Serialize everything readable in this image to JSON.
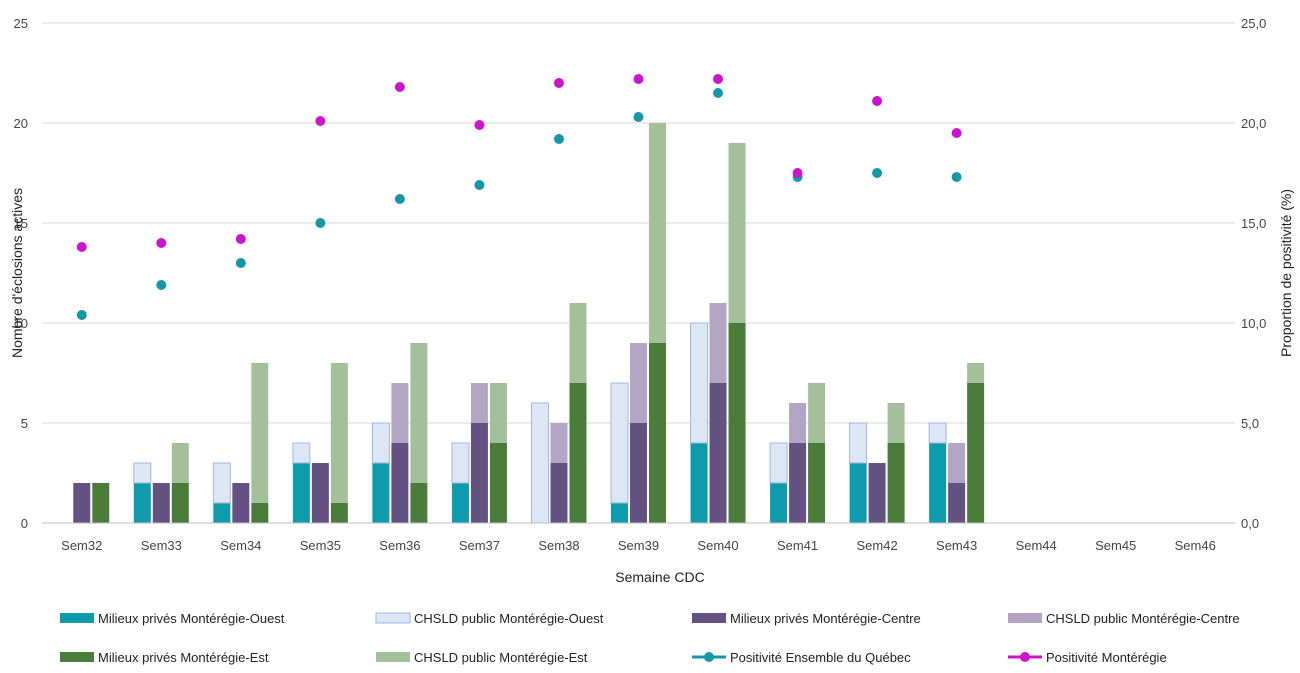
{
  "chart_data": {
    "type": "bar",
    "title": "",
    "xlabel": "Semaine CDC",
    "ylabel": "Nombre d'éclosions actives",
    "y2label": "Proportion de positivité (%)",
    "ylim": [
      0,
      25
    ],
    "y2lim": [
      0,
      25
    ],
    "yticks": [
      "0",
      "5",
      "10",
      "15",
      "20",
      "25"
    ],
    "y2ticks": [
      "0,0",
      "5,0",
      "10,0",
      "15,0",
      "20,0",
      "25,0"
    ],
    "grid": true,
    "legend_position": "bottom",
    "categories": [
      "Sem32",
      "Sem33",
      "Sem34",
      "Sem35",
      "Sem36",
      "Sem37",
      "Sem38",
      "Sem39",
      "Sem40",
      "Sem41",
      "Sem42",
      "Sem43",
      "Sem44",
      "Sem45",
      "Sem46"
    ],
    "bar_groups": [
      {
        "region": "Ouest",
        "series": [
          {
            "name": "Milieux privés Montérégie-Ouest",
            "color": "#0e9bab",
            "values": [
              0,
              2,
              1,
              3,
              3,
              2,
              0,
              1,
              4,
              2,
              3,
              4,
              0,
              0,
              0
            ]
          },
          {
            "name": "CHSLD public Montérégie-Ouest",
            "color": "#dce6f5",
            "stroke": "#9fb8e0",
            "values": [
              0,
              1,
              2,
              1,
              2,
              2,
              6,
              6,
              6,
              2,
              2,
              1,
              0,
              0,
              0
            ]
          }
        ]
      },
      {
        "region": "Centre",
        "series": [
          {
            "name": "Milieux privés  Montérégie-Centre",
            "color": "#645282",
            "values": [
              2,
              2,
              2,
              3,
              4,
              5,
              3,
              5,
              7,
              4,
              3,
              2,
              0,
              0,
              0
            ]
          },
          {
            "name": "CHSLD public Montérégie-Centre",
            "color": "#b3a6c4",
            "values": [
              0,
              0,
              0,
              0,
              3,
              2,
              2,
              4,
              4,
              2,
              0,
              2,
              0,
              0,
              0
            ]
          }
        ]
      },
      {
        "region": "Est",
        "series": [
          {
            "name": "Milieux privés Montérégie-Est",
            "color": "#4a7c3a",
            "values": [
              2,
              2,
              1,
              1,
              2,
              4,
              7,
              9,
              10,
              4,
              4,
              7,
              0,
              0,
              0
            ]
          },
          {
            "name": "CHSLD public Montérégie-Est",
            "color": "#a4c09a",
            "values": [
              0,
              2,
              7,
              7,
              7,
              3,
              4,
              11,
              9,
              3,
              2,
              1,
              0,
              0,
              0
            ]
          }
        ]
      }
    ],
    "line_series": [
      {
        "name": "Positivité Ensemble du Québec",
        "color": "#1597a6",
        "values": [
          10.4,
          11.9,
          13.0,
          15.0,
          16.2,
          16.9,
          19.2,
          20.3,
          21.5,
          17.3,
          17.5,
          17.3,
          null,
          null,
          null
        ]
      },
      {
        "name": "Positivité Montérégie",
        "color": "#cc14cc",
        "values": [
          13.8,
          14.0,
          14.2,
          20.1,
          21.8,
          19.9,
          22.0,
          22.2,
          22.2,
          17.5,
          21.1,
          19.5,
          null,
          null,
          null
        ]
      }
    ]
  }
}
